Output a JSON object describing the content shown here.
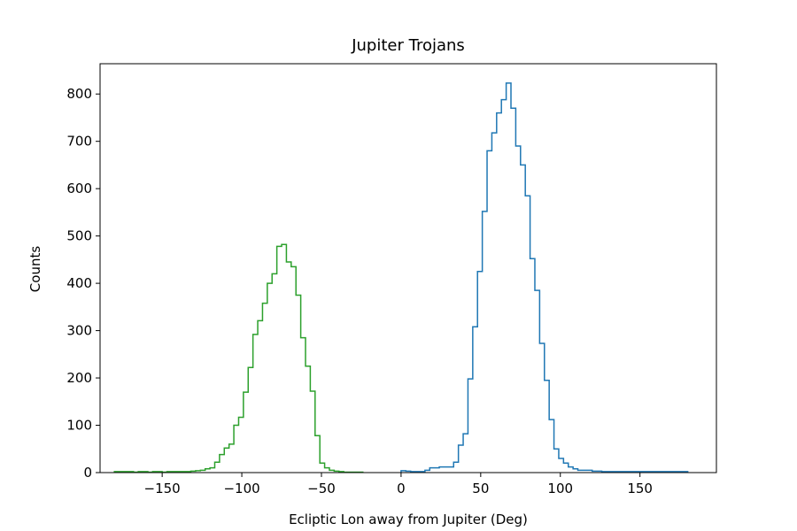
{
  "chart_data": {
    "type": "histogram",
    "title": "Jupiter Trojans",
    "xlabel": "Ecliptic Lon away from Jupiter (Deg)",
    "ylabel": "Counts",
    "xlim": [
      -189,
      198
    ],
    "ylim": [
      0,
      864
    ],
    "grid": false,
    "xticks": [
      {
        "value": -150,
        "label": "−150"
      },
      {
        "value": -100,
        "label": "−100"
      },
      {
        "value": -50,
        "label": "−50"
      },
      {
        "value": 0,
        "label": "0"
      },
      {
        "value": 50,
        "label": "50"
      },
      {
        "value": 100,
        "label": "100"
      },
      {
        "value": 150,
        "label": "150"
      }
    ],
    "yticks": [
      {
        "value": 0,
        "label": "0"
      },
      {
        "value": 100,
        "label": "100"
      },
      {
        "value": 200,
        "label": "200"
      },
      {
        "value": 300,
        "label": "300"
      },
      {
        "value": 400,
        "label": "400"
      },
      {
        "value": 500,
        "label": "500"
      },
      {
        "value": 600,
        "label": "600"
      },
      {
        "value": 700,
        "label": "700"
      },
      {
        "value": 800,
        "label": "800"
      }
    ],
    "series": [
      {
        "color": "#2ca02c",
        "bin_start": -180,
        "bin_width": 3,
        "values": [
          2,
          2,
          2,
          2,
          1,
          2,
          2,
          1,
          2,
          2,
          1,
          2,
          2,
          2,
          2,
          2,
          3,
          4,
          5,
          8,
          10,
          22,
          38,
          52,
          60,
          100,
          117,
          170,
          222,
          292,
          321,
          358,
          400,
          420,
          478,
          482,
          445,
          435,
          375,
          285,
          225,
          172,
          78,
          20,
          10,
          5,
          3,
          2,
          1,
          1,
          1,
          1
        ]
      },
      {
        "color": "#1f77b4",
        "bin_start": 0,
        "bin_width": 3,
        "values": [
          4,
          3,
          2,
          2,
          2,
          5,
          10,
          10,
          12,
          12,
          12,
          22,
          58,
          82,
          198,
          308,
          425,
          552,
          680,
          718,
          760,
          788,
          823,
          770,
          690,
          650,
          585,
          452,
          385,
          273,
          195,
          112,
          50,
          30,
          20,
          12,
          8,
          5,
          5,
          5,
          3,
          3,
          2,
          2,
          2,
          2,
          2,
          2,
          2,
          2,
          2,
          2,
          2,
          2,
          2,
          2,
          2,
          2,
          2,
          2
        ]
      }
    ]
  }
}
